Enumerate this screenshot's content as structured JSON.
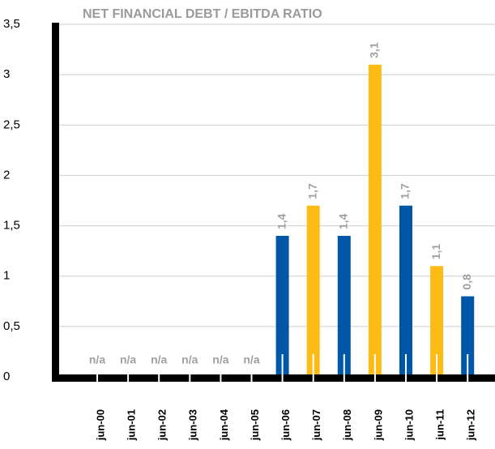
{
  "chart_data": {
    "type": "bar",
    "title": "NET FINANCIAL DEBT / EBITDA RATIO",
    "categories": [
      "jun-00",
      "jun-01",
      "jun-02",
      "jun-03",
      "jun-04",
      "jun-05",
      "jun-06",
      "jun-07",
      "jun-08",
      "jun-09",
      "jun-10",
      "jun-11",
      "jun-12"
    ],
    "values": [
      null,
      null,
      null,
      null,
      null,
      null,
      1.4,
      1.7,
      1.4,
      3.1,
      1.7,
      1.1,
      0.8
    ],
    "value_labels": [
      "n/a",
      "n/a",
      "n/a",
      "n/a",
      "n/a",
      "n/a",
      "1,4",
      "1,7",
      "1,4",
      "3,1",
      "1,7",
      "1,1",
      "0,8"
    ],
    "colors": [
      "#0057a8",
      "#fdbb16",
      "#0057a8",
      "#fdbb16",
      "#0057a8",
      "#fdbb16",
      "#0057a8",
      "#fdbb16",
      "#0057a8",
      "#fdbb16",
      "#0057a8",
      "#fdbb16",
      "#0057a8"
    ],
    "ylim": [
      0,
      3.5
    ],
    "yticks": [
      0,
      {
        "value": 0.5,
        "label": "0,5"
      },
      1,
      {
        "value": 1.5,
        "label": "1,5"
      },
      2,
      {
        "value": 2.5,
        "label": "2,5"
      },
      3,
      {
        "value": 3.5,
        "label": "3,5"
      }
    ],
    "grid": true
  }
}
